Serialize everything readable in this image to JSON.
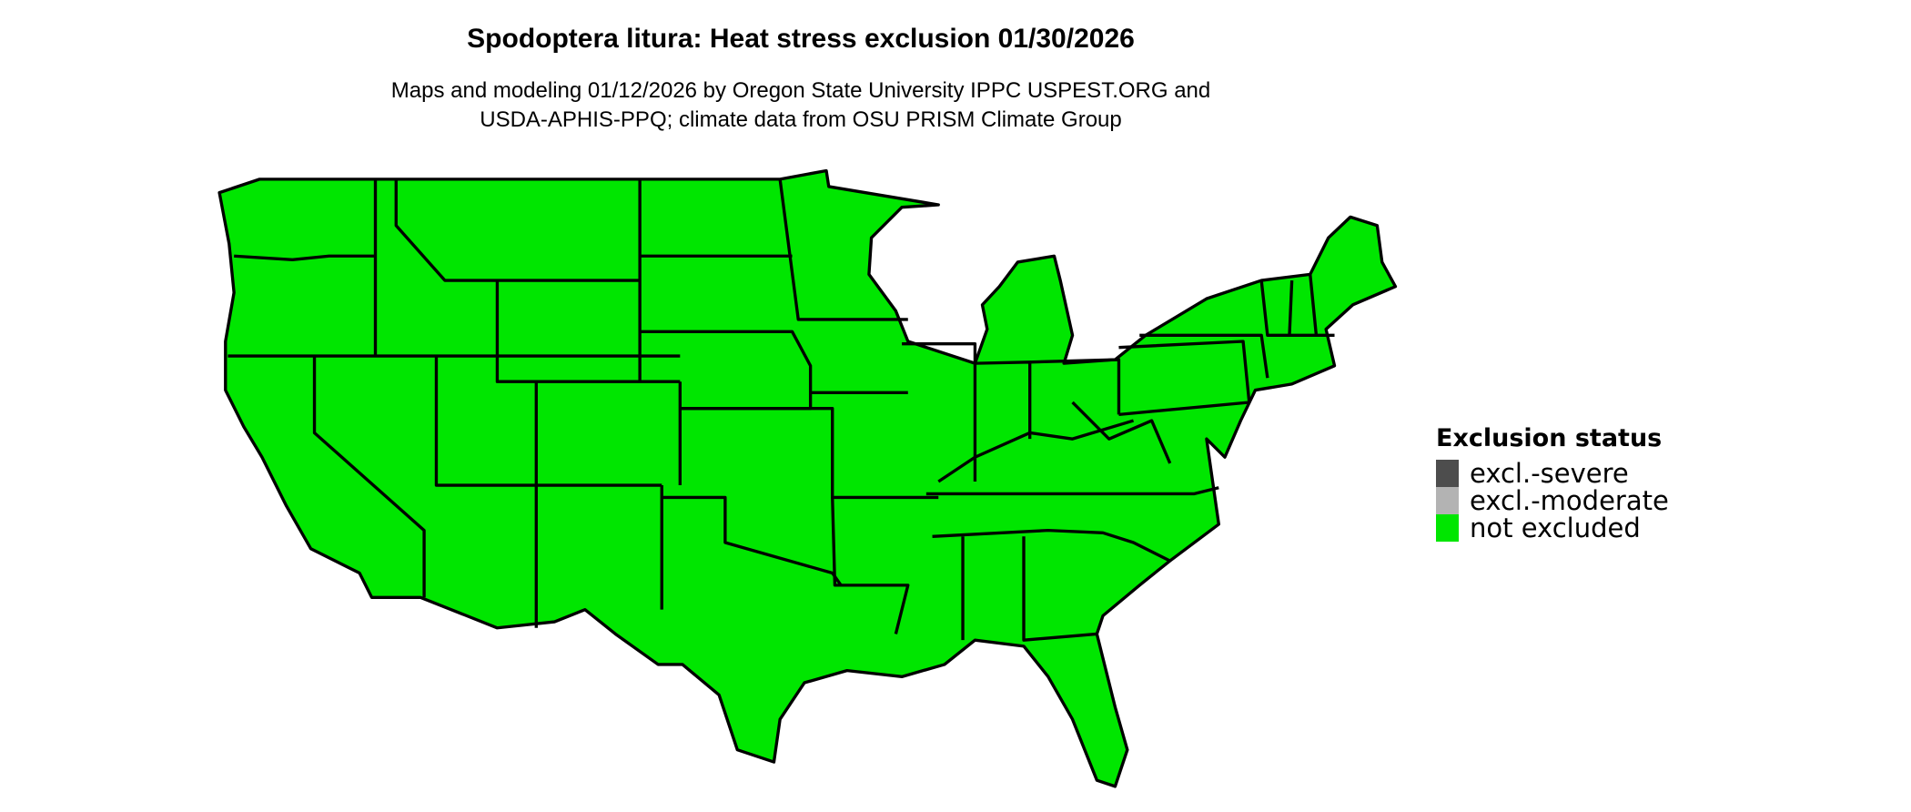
{
  "title": "Spodoptera litura: Heat stress exclusion 01/30/2026",
  "subtitle_line1": "Maps and modeling 01/12/2026 by Oregon State University IPPC USPEST.ORG and",
  "subtitle_line2": "USDA-APHIS-PPQ; climate data from OSU PRISM Climate Group",
  "map": {
    "region": "Contiguous United States",
    "fill_status": "not excluded",
    "fill_color": "#00e600",
    "border_color": "#000000"
  },
  "legend": {
    "title": "Exclusion status",
    "items": [
      {
        "label": "excl.-severe",
        "color": "#4d4d4d"
      },
      {
        "label": "excl.-moderate",
        "color": "#b3b3b3"
      },
      {
        "label": "not excluded",
        "color": "#00e600"
      }
    ]
  }
}
